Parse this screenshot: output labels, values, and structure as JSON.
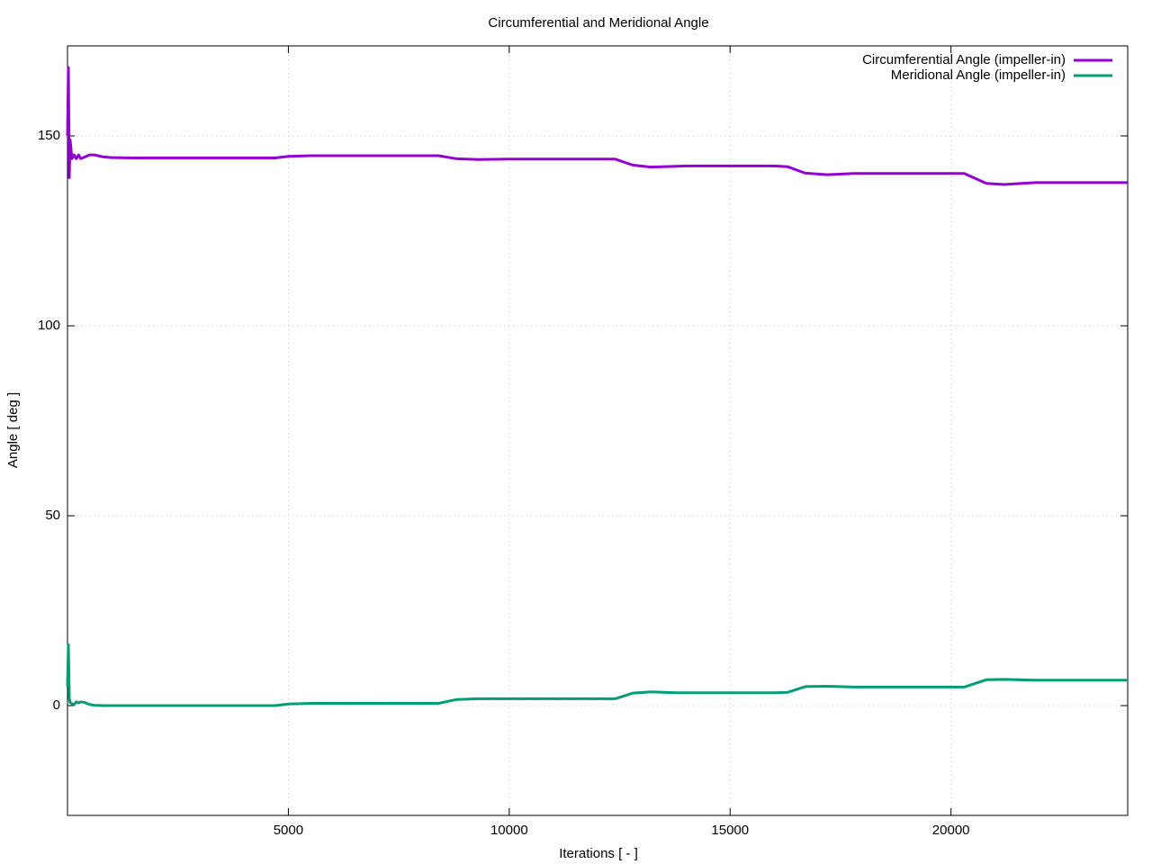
{
  "chart_data": {
    "type": "line",
    "title": "Circumferential and Meridional Angle",
    "x_label": "Iterations [ - ]",
    "y_label": "Angle [ deg ]",
    "xlim": [
      0,
      24000
    ],
    "ylim": [
      -28.9,
      173.7
    ],
    "xticks": [
      5000,
      10000,
      15000,
      20000
    ],
    "yticks": [
      0,
      50,
      100,
      150
    ],
    "grid": true,
    "legend": "top-right",
    "x": [
      0,
      20,
      40,
      60,
      100,
      150,
      200,
      250,
      300,
      400,
      500,
      600,
      800,
      1000,
      1500,
      4700,
      5000,
      5500,
      8400,
      8800,
      9300,
      10000,
      12000,
      12400,
      12800,
      13200,
      13800,
      14000,
      16000,
      16300,
      16700,
      17200,
      17800,
      20300,
      20800,
      21200,
      21900,
      24000
    ],
    "series": [
      {
        "name": "Circumferential Angle (impeller-in)",
        "color": "#9400d3",
        "values": [
          150,
          168,
          139,
          149,
          144,
          145,
          144,
          145,
          144,
          144.5,
          145,
          145,
          144.5,
          144.3,
          144.2,
          144.2,
          144.6,
          144.8,
          144.8,
          144,
          143.8,
          143.9,
          143.9,
          143.9,
          142.3,
          141.8,
          142,
          142.1,
          142.1,
          141.9,
          140.2,
          139.8,
          140.1,
          140.1,
          137.5,
          137.2,
          137.7,
          137.7
        ]
      },
      {
        "name": "Meridional Angle (impeller-in)",
        "color": "#009e73",
        "values": [
          5,
          16,
          2,
          0.8,
          0.5,
          0.3,
          1,
          0.7,
          1,
          0.8,
          0.3,
          0.1,
          0,
          0,
          0,
          0,
          0.4,
          0.6,
          0.6,
          1.6,
          1.8,
          1.8,
          1.8,
          1.8,
          3.3,
          3.6,
          3.4,
          3.4,
          3.4,
          3.5,
          5,
          5.1,
          4.9,
          4.9,
          6.8,
          6.9,
          6.7,
          6.7
        ]
      }
    ]
  }
}
